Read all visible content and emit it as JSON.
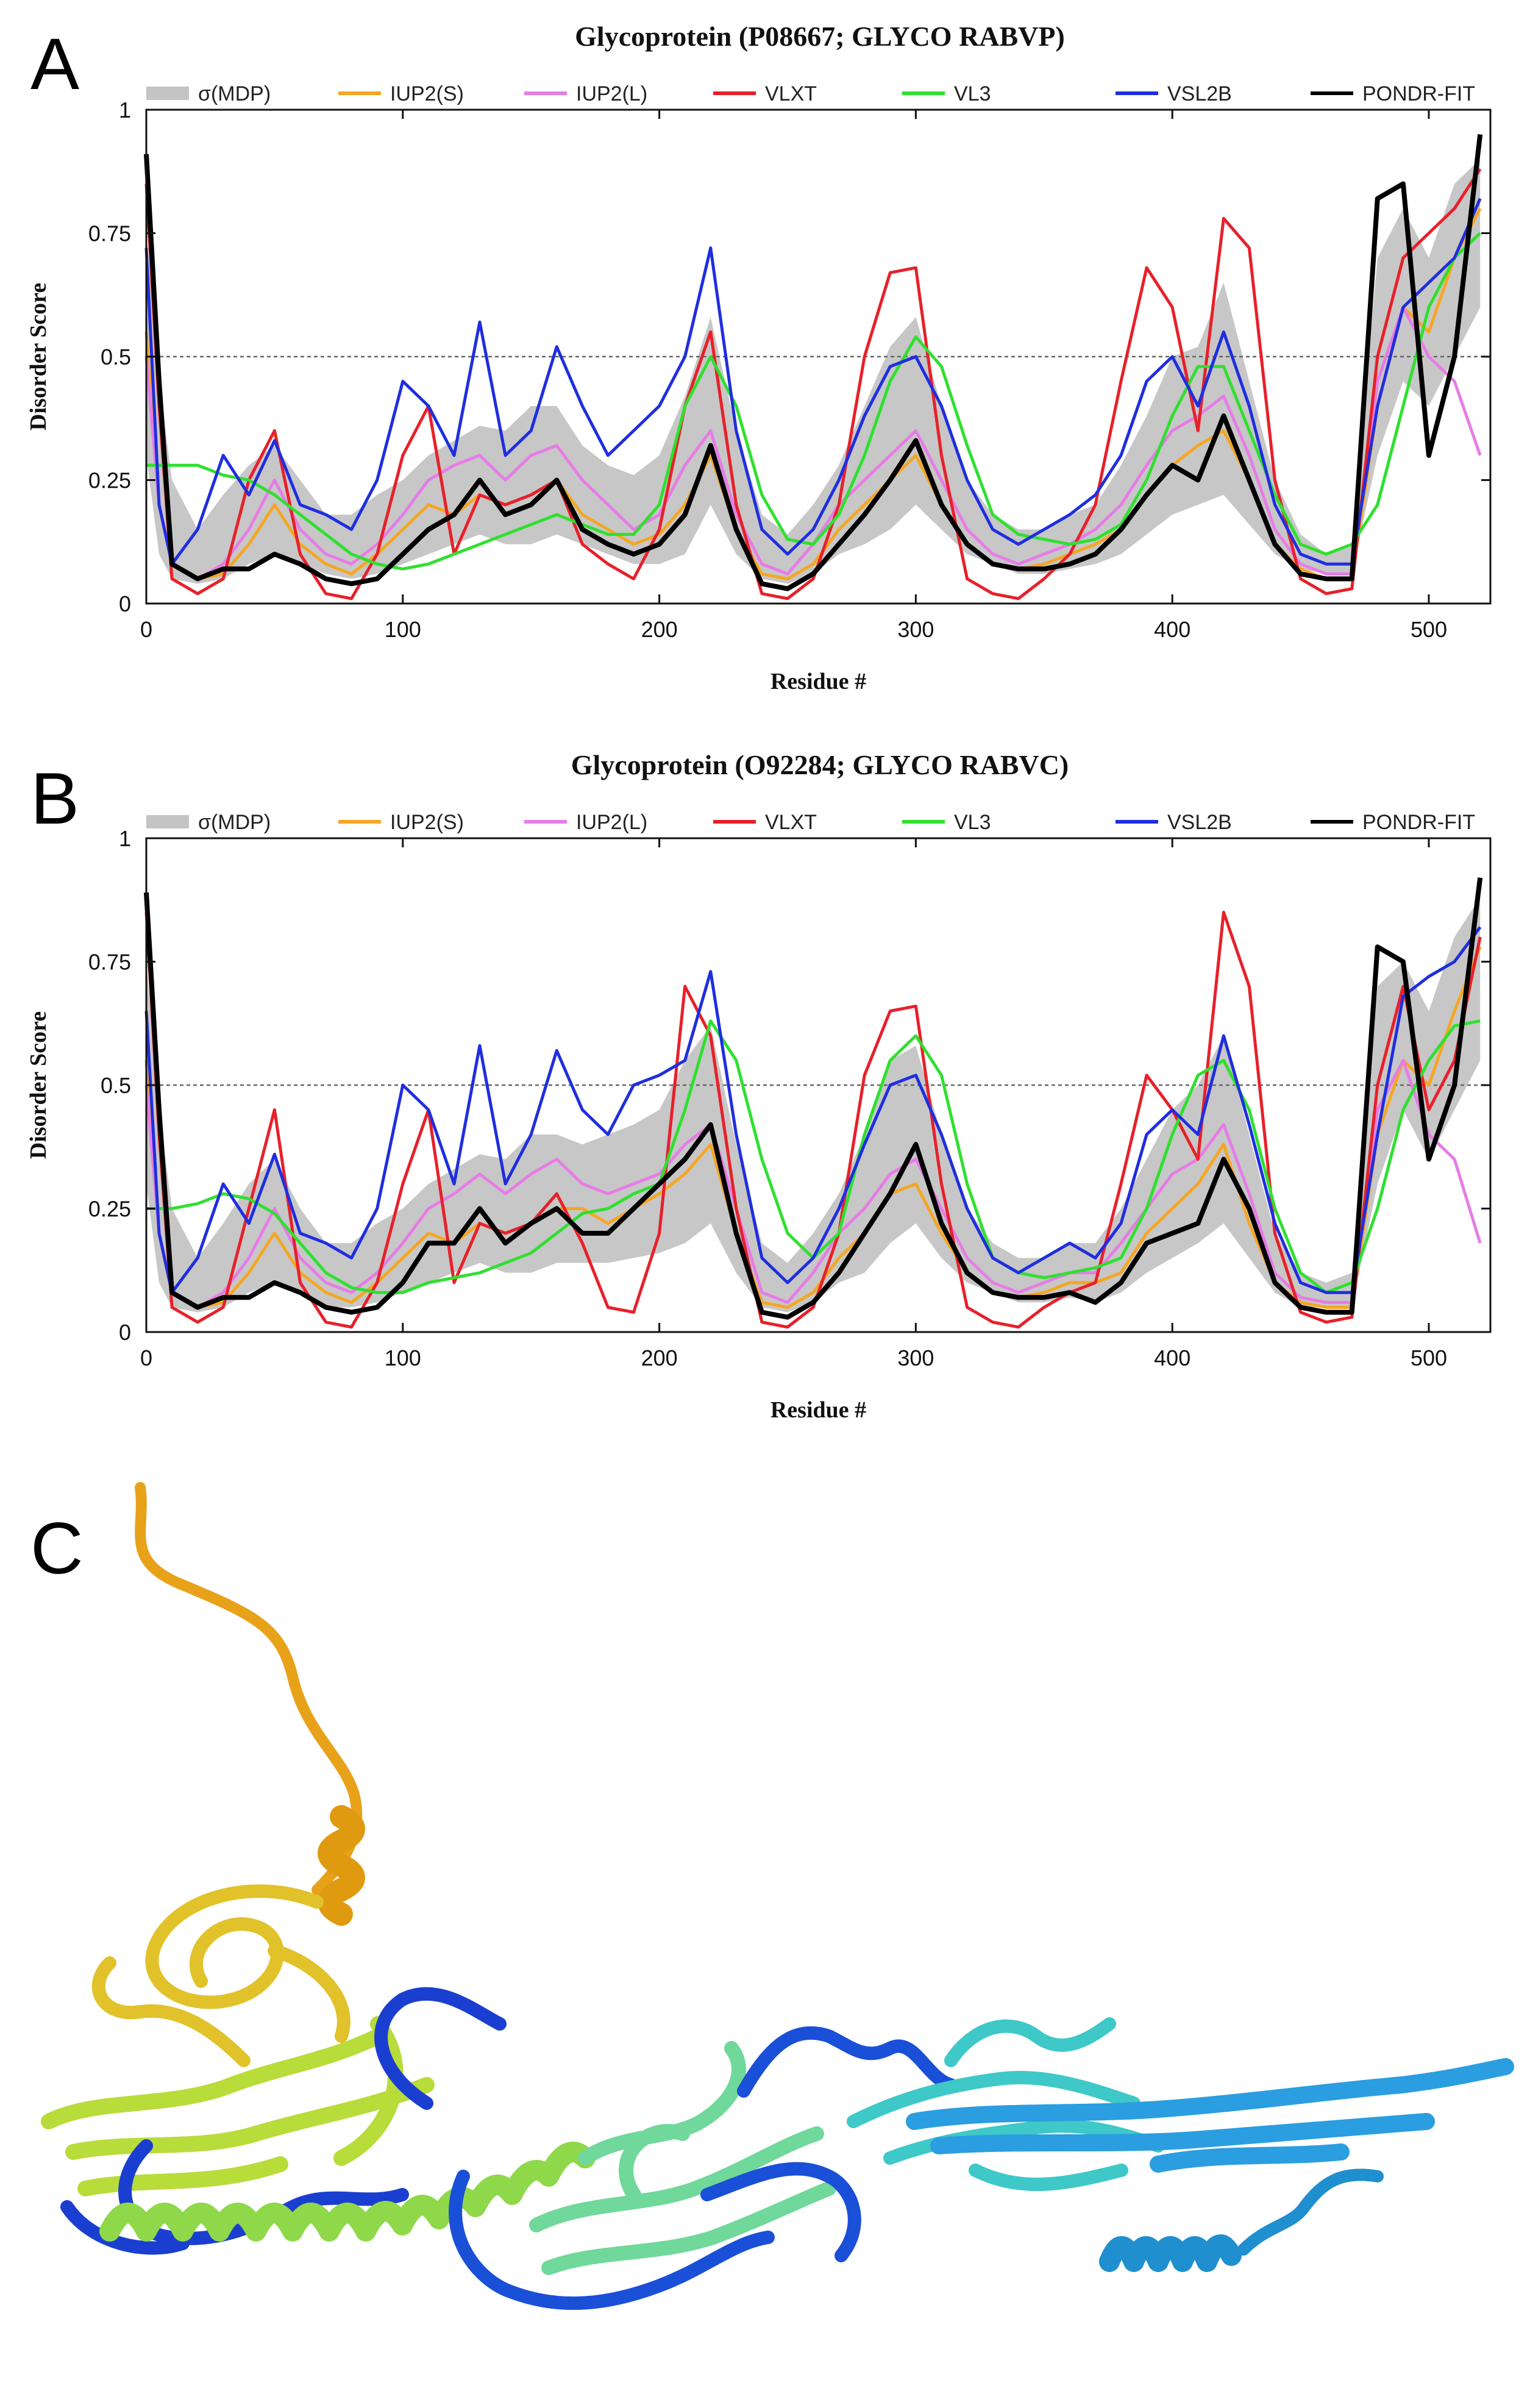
{
  "panels": {
    "a": "A",
    "b": "B",
    "c": "C"
  },
  "legend": [
    "σ(MDP)",
    "IUP2(S)",
    "IUP2(L)",
    "VLXT",
    "VL3",
    "VSL2B",
    "PONDR-FIT"
  ],
  "colors": {
    "sigma": "#c4c4c4",
    "iup2s": "#f5a623",
    "iup2l": "#e67ce6",
    "vlxt": "#e8202a",
    "vl3": "#2fe02f",
    "vsl2b": "#1f2ee0",
    "pondr": "#000000",
    "threshold": "#666666"
  },
  "chart_data": [
    {
      "type": "line",
      "title": "Glycoprotein (P08667; GLYCO RABVP)",
      "xlabel": "Residue #",
      "ylabel": "Disorder Score",
      "xlim": [
        0,
        524
      ],
      "ylim": [
        0,
        1
      ],
      "xticks": [
        0,
        100,
        200,
        300,
        400,
        500
      ],
      "yticks": [
        0,
        0.25,
        0.5,
        0.75,
        1
      ],
      "ytick_labels": [
        "0",
        "0.25",
        "0.5",
        "0.75",
        "1"
      ],
      "threshold": 0.5,
      "x": [
        0,
        5,
        10,
        20,
        30,
        40,
        50,
        60,
        70,
        80,
        90,
        100,
        110,
        120,
        130,
        140,
        150,
        160,
        170,
        180,
        190,
        200,
        210,
        220,
        230,
        240,
        250,
        260,
        270,
        280,
        290,
        300,
        310,
        320,
        330,
        340,
        350,
        360,
        370,
        380,
        390,
        400,
        410,
        420,
        430,
        440,
        450,
        460,
        470,
        480,
        490,
        500,
        510,
        520
      ],
      "series": [
        {
          "name": "σ(MDP) low",
          "values": [
            0.3,
            0.1,
            0.05,
            0.04,
            0.05,
            0.08,
            0.1,
            0.08,
            0.06,
            0.05,
            0.06,
            0.08,
            0.1,
            0.12,
            0.14,
            0.12,
            0.12,
            0.14,
            0.12,
            0.1,
            0.08,
            0.08,
            0.1,
            0.2,
            0.1,
            0.05,
            0.04,
            0.06,
            0.1,
            0.12,
            0.15,
            0.2,
            0.15,
            0.1,
            0.08,
            0.06,
            0.06,
            0.07,
            0.08,
            0.1,
            0.14,
            0.18,
            0.2,
            0.22,
            0.16,
            0.1,
            0.07,
            0.06,
            0.06,
            0.3,
            0.45,
            0.4,
            0.5,
            0.6
          ]
        },
        {
          "name": "σ(MDP) high",
          "values": [
            0.75,
            0.45,
            0.25,
            0.15,
            0.22,
            0.28,
            0.32,
            0.25,
            0.18,
            0.18,
            0.22,
            0.25,
            0.3,
            0.33,
            0.36,
            0.35,
            0.4,
            0.4,
            0.32,
            0.28,
            0.26,
            0.3,
            0.42,
            0.58,
            0.35,
            0.18,
            0.14,
            0.2,
            0.28,
            0.4,
            0.52,
            0.58,
            0.4,
            0.25,
            0.18,
            0.15,
            0.15,
            0.18,
            0.2,
            0.28,
            0.38,
            0.5,
            0.52,
            0.65,
            0.45,
            0.25,
            0.14,
            0.1,
            0.12,
            0.7,
            0.8,
            0.7,
            0.85,
            0.9
          ]
        },
        {
          "name": "IUP2(S)",
          "values": [
            0.55,
            0.2,
            0.08,
            0.05,
            0.06,
            0.12,
            0.2,
            0.12,
            0.08,
            0.06,
            0.1,
            0.15,
            0.2,
            0.18,
            0.22,
            0.2,
            0.22,
            0.25,
            0.18,
            0.15,
            0.12,
            0.14,
            0.2,
            0.3,
            0.15,
            0.06,
            0.05,
            0.08,
            0.15,
            0.2,
            0.25,
            0.3,
            0.2,
            0.12,
            0.08,
            0.07,
            0.08,
            0.1,
            0.12,
            0.15,
            0.22,
            0.28,
            0.32,
            0.35,
            0.25,
            0.12,
            0.07,
            0.05,
            0.05,
            0.4,
            0.6,
            0.55,
            0.7,
            0.8
          ]
        },
        {
          "name": "IUP2(L)",
          "values": [
            0.5,
            0.2,
            0.08,
            0.05,
            0.08,
            0.15,
            0.25,
            0.15,
            0.1,
            0.08,
            0.12,
            0.18,
            0.25,
            0.28,
            0.3,
            0.25,
            0.3,
            0.32,
            0.25,
            0.2,
            0.15,
            0.18,
            0.28,
            0.35,
            0.18,
            0.08,
            0.06,
            0.12,
            0.2,
            0.25,
            0.3,
            0.35,
            0.25,
            0.15,
            0.1,
            0.08,
            0.1,
            0.12,
            0.15,
            0.2,
            0.28,
            0.35,
            0.38,
            0.42,
            0.3,
            0.15,
            0.08,
            0.06,
            0.06,
            0.45,
            0.6,
            0.5,
            0.45,
            0.3
          ]
        },
        {
          "name": "VLXT",
          "values": [
            0.85,
            0.4,
            0.05,
            0.02,
            0.05,
            0.25,
            0.35,
            0.1,
            0.02,
            0.01,
            0.1,
            0.3,
            0.4,
            0.1,
            0.22,
            0.2,
            0.22,
            0.25,
            0.12,
            0.08,
            0.05,
            0.15,
            0.4,
            0.55,
            0.2,
            0.02,
            0.01,
            0.05,
            0.2,
            0.5,
            0.67,
            0.68,
            0.3,
            0.05,
            0.02,
            0.01,
            0.05,
            0.1,
            0.2,
            0.45,
            0.68,
            0.6,
            0.35,
            0.78,
            0.72,
            0.25,
            0.05,
            0.02,
            0.03,
            0.5,
            0.7,
            0.75,
            0.8,
            0.88
          ]
        },
        {
          "name": "VL3",
          "values": [
            0.28,
            0.28,
            0.28,
            0.28,
            0.26,
            0.25,
            0.22,
            0.18,
            0.14,
            0.1,
            0.08,
            0.07,
            0.08,
            0.1,
            0.12,
            0.14,
            0.16,
            0.18,
            0.16,
            0.14,
            0.14,
            0.2,
            0.4,
            0.5,
            0.4,
            0.22,
            0.13,
            0.12,
            0.18,
            0.3,
            0.45,
            0.54,
            0.48,
            0.32,
            0.18,
            0.14,
            0.13,
            0.12,
            0.13,
            0.16,
            0.25,
            0.38,
            0.48,
            0.48,
            0.35,
            0.22,
            0.12,
            0.1,
            0.12,
            0.2,
            0.4,
            0.6,
            0.7,
            0.75
          ]
        },
        {
          "name": "VSL2B",
          "values": [
            0.72,
            0.2,
            0.08,
            0.15,
            0.3,
            0.22,
            0.33,
            0.2,
            0.18,
            0.15,
            0.25,
            0.45,
            0.4,
            0.3,
            0.57,
            0.3,
            0.35,
            0.52,
            0.4,
            0.3,
            0.35,
            0.4,
            0.5,
            0.72,
            0.35,
            0.15,
            0.1,
            0.15,
            0.25,
            0.38,
            0.48,
            0.5,
            0.4,
            0.25,
            0.15,
            0.12,
            0.15,
            0.18,
            0.22,
            0.3,
            0.45,
            0.5,
            0.4,
            0.55,
            0.4,
            0.2,
            0.1,
            0.08,
            0.08,
            0.4,
            0.6,
            0.65,
            0.7,
            0.82
          ]
        },
        {
          "name": "PONDR-FIT",
          "values": [
            0.91,
            0.45,
            0.08,
            0.05,
            0.07,
            0.07,
            0.1,
            0.08,
            0.05,
            0.04,
            0.05,
            0.1,
            0.15,
            0.18,
            0.25,
            0.18,
            0.2,
            0.25,
            0.15,
            0.12,
            0.1,
            0.12,
            0.18,
            0.32,
            0.15,
            0.04,
            0.03,
            0.06,
            0.12,
            0.18,
            0.25,
            0.33,
            0.2,
            0.12,
            0.08,
            0.07,
            0.07,
            0.08,
            0.1,
            0.15,
            0.22,
            0.28,
            0.25,
            0.38,
            0.25,
            0.12,
            0.06,
            0.05,
            0.05,
            0.82,
            0.85,
            0.3,
            0.5,
            0.95
          ]
        }
      ]
    },
    {
      "type": "line",
      "title": "Glycoprotein (O92284; GLYCO RABVC)",
      "xlabel": "Residue #",
      "ylabel": "Disorder Score",
      "xlim": [
        0,
        524
      ],
      "ylim": [
        0,
        1
      ],
      "xticks": [
        0,
        100,
        200,
        300,
        400,
        500
      ],
      "yticks": [
        0,
        0.25,
        0.5,
        0.75,
        1
      ],
      "ytick_labels": [
        "0",
        "0.25",
        "0.5",
        "0.75",
        "1"
      ],
      "threshold": 0.5,
      "x": [
        0,
        5,
        10,
        20,
        30,
        40,
        50,
        60,
        70,
        80,
        90,
        100,
        110,
        120,
        130,
        140,
        150,
        160,
        170,
        180,
        190,
        200,
        210,
        220,
        230,
        240,
        250,
        260,
        270,
        280,
        290,
        300,
        310,
        320,
        330,
        340,
        350,
        360,
        370,
        380,
        390,
        400,
        410,
        420,
        430,
        440,
        450,
        460,
        470,
        480,
        490,
        500,
        510,
        520
      ],
      "series": [
        {
          "name": "σ(MDP) low",
          "values": [
            0.3,
            0.1,
            0.05,
            0.04,
            0.05,
            0.08,
            0.1,
            0.08,
            0.05,
            0.05,
            0.06,
            0.08,
            0.1,
            0.12,
            0.14,
            0.12,
            0.12,
            0.14,
            0.14,
            0.14,
            0.15,
            0.16,
            0.18,
            0.22,
            0.12,
            0.05,
            0.04,
            0.06,
            0.1,
            0.12,
            0.18,
            0.22,
            0.15,
            0.1,
            0.08,
            0.06,
            0.06,
            0.07,
            0.06,
            0.08,
            0.12,
            0.15,
            0.18,
            0.22,
            0.15,
            0.08,
            0.05,
            0.05,
            0.05,
            0.3,
            0.45,
            0.35,
            0.45,
            0.55
          ]
        },
        {
          "name": "σ(MDP) high",
          "values": [
            0.75,
            0.45,
            0.25,
            0.15,
            0.22,
            0.3,
            0.35,
            0.25,
            0.18,
            0.18,
            0.22,
            0.25,
            0.3,
            0.33,
            0.36,
            0.35,
            0.4,
            0.4,
            0.38,
            0.4,
            0.42,
            0.45,
            0.55,
            0.62,
            0.38,
            0.18,
            0.14,
            0.2,
            0.28,
            0.4,
            0.55,
            0.58,
            0.4,
            0.25,
            0.18,
            0.15,
            0.15,
            0.18,
            0.18,
            0.25,
            0.35,
            0.45,
            0.5,
            0.6,
            0.4,
            0.2,
            0.12,
            0.1,
            0.12,
            0.7,
            0.75,
            0.65,
            0.8,
            0.88
          ]
        },
        {
          "name": "IUP2(S)",
          "values": [
            0.55,
            0.2,
            0.08,
            0.05,
            0.06,
            0.12,
            0.2,
            0.12,
            0.08,
            0.06,
            0.1,
            0.15,
            0.2,
            0.18,
            0.22,
            0.2,
            0.22,
            0.25,
            0.25,
            0.22,
            0.25,
            0.28,
            0.32,
            0.38,
            0.2,
            0.06,
            0.05,
            0.08,
            0.15,
            0.2,
            0.28,
            0.3,
            0.2,
            0.12,
            0.08,
            0.07,
            0.08,
            0.1,
            0.1,
            0.12,
            0.2,
            0.25,
            0.3,
            0.38,
            0.22,
            0.1,
            0.06,
            0.05,
            0.05,
            0.4,
            0.55,
            0.5,
            0.65,
            0.78
          ]
        },
        {
          "name": "IUP2(L)",
          "values": [
            0.5,
            0.2,
            0.08,
            0.05,
            0.08,
            0.15,
            0.25,
            0.15,
            0.1,
            0.08,
            0.12,
            0.18,
            0.25,
            0.28,
            0.32,
            0.28,
            0.32,
            0.35,
            0.3,
            0.28,
            0.3,
            0.32,
            0.38,
            0.42,
            0.25,
            0.08,
            0.06,
            0.12,
            0.2,
            0.25,
            0.32,
            0.35,
            0.25,
            0.15,
            0.1,
            0.08,
            0.1,
            0.12,
            0.12,
            0.18,
            0.25,
            0.32,
            0.35,
            0.42,
            0.28,
            0.12,
            0.07,
            0.06,
            0.06,
            0.45,
            0.55,
            0.4,
            0.35,
            0.18
          ]
        },
        {
          "name": "VLXT",
          "values": [
            0.85,
            0.4,
            0.05,
            0.02,
            0.05,
            0.25,
            0.45,
            0.1,
            0.02,
            0.01,
            0.1,
            0.3,
            0.45,
            0.1,
            0.22,
            0.2,
            0.22,
            0.28,
            0.18,
            0.05,
            0.04,
            0.2,
            0.7,
            0.6,
            0.25,
            0.02,
            0.01,
            0.05,
            0.2,
            0.52,
            0.65,
            0.66,
            0.3,
            0.05,
            0.02,
            0.01,
            0.05,
            0.08,
            0.1,
            0.3,
            0.52,
            0.45,
            0.35,
            0.85,
            0.7,
            0.2,
            0.04,
            0.02,
            0.03,
            0.5,
            0.7,
            0.45,
            0.55,
            0.8
          ]
        },
        {
          "name": "VL3",
          "values": [
            0.25,
            0.25,
            0.25,
            0.26,
            0.28,
            0.27,
            0.24,
            0.18,
            0.12,
            0.09,
            0.08,
            0.08,
            0.1,
            0.11,
            0.12,
            0.14,
            0.16,
            0.2,
            0.24,
            0.25,
            0.28,
            0.3,
            0.45,
            0.63,
            0.55,
            0.35,
            0.2,
            0.15,
            0.2,
            0.4,
            0.55,
            0.6,
            0.52,
            0.3,
            0.15,
            0.12,
            0.11,
            0.12,
            0.13,
            0.15,
            0.25,
            0.4,
            0.52,
            0.55,
            0.45,
            0.25,
            0.12,
            0.08,
            0.1,
            0.25,
            0.45,
            0.55,
            0.62,
            0.63
          ]
        },
        {
          "name": "VSL2B",
          "values": [
            0.65,
            0.2,
            0.08,
            0.15,
            0.3,
            0.22,
            0.36,
            0.2,
            0.18,
            0.15,
            0.25,
            0.5,
            0.45,
            0.3,
            0.58,
            0.3,
            0.4,
            0.57,
            0.45,
            0.4,
            0.5,
            0.52,
            0.55,
            0.73,
            0.4,
            0.15,
            0.1,
            0.15,
            0.25,
            0.38,
            0.5,
            0.52,
            0.4,
            0.25,
            0.15,
            0.12,
            0.15,
            0.18,
            0.15,
            0.22,
            0.4,
            0.45,
            0.4,
            0.6,
            0.42,
            0.22,
            0.1,
            0.08,
            0.08,
            0.4,
            0.68,
            0.72,
            0.75,
            0.82
          ]
        },
        {
          "name": "PONDR-FIT",
          "values": [
            0.89,
            0.45,
            0.08,
            0.05,
            0.07,
            0.07,
            0.1,
            0.08,
            0.05,
            0.04,
            0.05,
            0.1,
            0.18,
            0.18,
            0.25,
            0.18,
            0.22,
            0.25,
            0.2,
            0.2,
            0.25,
            0.3,
            0.35,
            0.42,
            0.2,
            0.04,
            0.03,
            0.06,
            0.12,
            0.2,
            0.28,
            0.38,
            0.22,
            0.12,
            0.08,
            0.07,
            0.07,
            0.08,
            0.06,
            0.1,
            0.18,
            0.2,
            0.22,
            0.35,
            0.25,
            0.1,
            0.05,
            0.04,
            0.04,
            0.78,
            0.75,
            0.35,
            0.5,
            0.92
          ]
        }
      ]
    }
  ]
}
